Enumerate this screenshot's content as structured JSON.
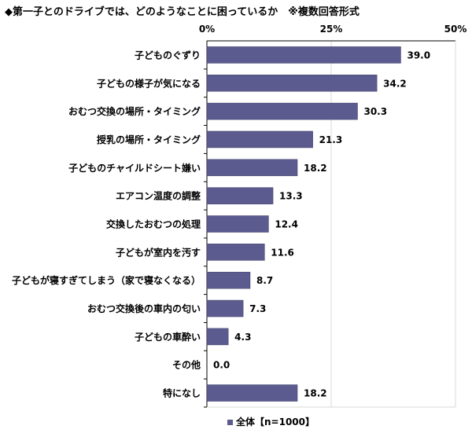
{
  "title": "◆第一子とのドライブでは、どのようなことに困っているか　※複数回答形式",
  "colors": {
    "bar": "#5b5b8f",
    "bar_stroke": "#3d3d66",
    "grid": "#d9d9d9"
  },
  "chart_data": {
    "type": "bar",
    "orientation": "horizontal",
    "title": "◆第一子とのドライブでは、どのようなことに困っているか　※複数回答形式",
    "categories": [
      "子どものぐずり",
      "子どもの様子が気になる",
      "おむつ交換の場所・タイミング",
      "授乳の場所・タイミング",
      "子どものチャイルドシート嫌い",
      "エアコン温度の調整",
      "交換したおむつの処理",
      "子どもが室内を汚す",
      "子どもが寝すぎてしまう（家で寝なくなる）",
      "おむつ交換後の車内の匂い",
      "子どもの車酔い",
      "その他",
      "特になし"
    ],
    "series": [
      {
        "name": "全体【n=1000】",
        "values": [
          39.0,
          34.2,
          30.3,
          21.3,
          18.2,
          13.3,
          12.4,
          11.6,
          8.7,
          7.3,
          4.3,
          0.0,
          18.2
        ]
      }
    ],
    "value_labels": [
      "39.0",
      "34.2",
      "30.3",
      "21.3",
      "18.2",
      "13.3",
      "12.4",
      "11.6",
      "8.7",
      "7.3",
      "4.3",
      "0.0",
      "18.2"
    ],
    "xlim": [
      0,
      50
    ],
    "ticks": [
      0,
      25,
      50
    ],
    "tick_labels": [
      "0%",
      "25%",
      "50%"
    ],
    "grid": true,
    "legend_position": "bottom",
    "legend_label": "全体【n=1000】"
  }
}
